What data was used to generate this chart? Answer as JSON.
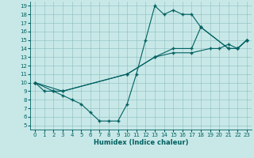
{
  "xlabel": "Humidex (Indice chaleur)",
  "bg_color": "#c8e8e8",
  "line_color": "#006060",
  "xlim": [
    -0.5,
    23.5
  ],
  "ylim": [
    4.5,
    19.5
  ],
  "xticks": [
    0,
    1,
    2,
    3,
    4,
    5,
    6,
    7,
    8,
    9,
    10,
    11,
    12,
    13,
    14,
    15,
    16,
    17,
    18,
    19,
    20,
    21,
    22,
    23
  ],
  "yticks": [
    5,
    6,
    7,
    8,
    9,
    10,
    11,
    12,
    13,
    14,
    15,
    16,
    17,
    18,
    19
  ],
  "line1_x": [
    0,
    1,
    2,
    3,
    4,
    5,
    6,
    7,
    8,
    9,
    10,
    11,
    12,
    13,
    14,
    15,
    16,
    17,
    18,
    21,
    22,
    23
  ],
  "line1_y": [
    10,
    9,
    9,
    8.5,
    8,
    7.5,
    6.5,
    5.5,
    5.5,
    5.5,
    7.5,
    11,
    15,
    19,
    18,
    18.5,
    18,
    18,
    16.5,
    14,
    14,
    15
  ],
  "line2_x": [
    0,
    2,
    3,
    10,
    13,
    15,
    17,
    19,
    20,
    21,
    22,
    23
  ],
  "line2_y": [
    10,
    9,
    9,
    11,
    13,
    13.5,
    13.5,
    14,
    14,
    14.5,
    14,
    15
  ],
  "line3_x": [
    0,
    3,
    10,
    13,
    15,
    17,
    18,
    21,
    22,
    23
  ],
  "line3_y": [
    10,
    9,
    11,
    13,
    14,
    14,
    16.5,
    14,
    14,
    15
  ],
  "xlabel_fontsize": 6,
  "tick_fontsize": 5
}
